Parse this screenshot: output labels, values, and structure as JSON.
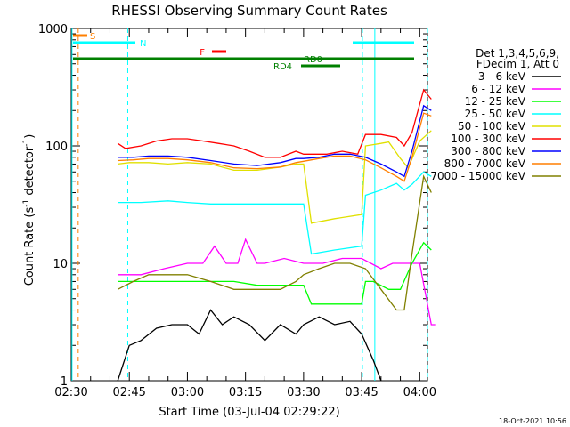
{
  "chart_data": {
    "type": "line",
    "title": "RHESSI Observing Summary Count Rates",
    "xlabel": "Start Time (03-Jul-04 02:29:22)",
    "ylabel_main": "Count Rate (s",
    "ylabel_sup1": "-1",
    "ylabel_mid": " detector",
    "ylabel_sup2": "-1",
    "ylabel_end": ")",
    "y_scale": "log",
    "ylim": [
      1,
      1000
    ],
    "xlim_min": [
      150,
      242
    ],
    "y_ticks": [
      {
        "v": 1,
        "label": "1"
      },
      {
        "v": 10,
        "label": "10"
      },
      {
        "v": 100,
        "label": "100"
      },
      {
        "v": 1000,
        "label": "1000"
      }
    ],
    "x_ticks": [
      {
        "v": 150,
        "label": "02:30"
      },
      {
        "v": 165,
        "label": "02:45"
      },
      {
        "v": 180,
        "label": "03:00"
      },
      {
        "v": 195,
        "label": "03:15"
      },
      {
        "v": 210,
        "label": "03:30"
      },
      {
        "v": 225,
        "label": "03:45"
      },
      {
        "v": 240,
        "label": "04:00"
      }
    ],
    "legend_header": [
      "Det 1,3,4,5,6,9,",
      "FDecim 1, Att 0"
    ],
    "legend_placement": "right",
    "timestamp": "18-Oct-2021 10:56",
    "series": [
      {
        "name": "3 - 6 keV",
        "color": "#000000",
        "points": [
          [
            162,
            1
          ],
          [
            165,
            2
          ],
          [
            168,
            2.2
          ],
          [
            172,
            2.8
          ],
          [
            176,
            3
          ],
          [
            180,
            3
          ],
          [
            183,
            2.5
          ],
          [
            186,
            4
          ],
          [
            189,
            3
          ],
          [
            192,
            3.5
          ],
          [
            196,
            3
          ],
          [
            200,
            2.2
          ],
          [
            204,
            3
          ],
          [
            208,
            2.5
          ],
          [
            210,
            3
          ],
          [
            214,
            3.5
          ],
          [
            218,
            3
          ],
          [
            222,
            3.2
          ],
          [
            225,
            2.5
          ],
          [
            228,
            1.5
          ],
          [
            230,
            1
          ]
        ]
      },
      {
        "name": "6 - 12 keV",
        "color": "#ff00ff",
        "points": [
          [
            162,
            8
          ],
          [
            168,
            8
          ],
          [
            174,
            9
          ],
          [
            180,
            10
          ],
          [
            184,
            10
          ],
          [
            187,
            14
          ],
          [
            190,
            10
          ],
          [
            193,
            10
          ],
          [
            195,
            16
          ],
          [
            198,
            10
          ],
          [
            200,
            10
          ],
          [
            205,
            11
          ],
          [
            210,
            10
          ],
          [
            215,
            10
          ],
          [
            220,
            11
          ],
          [
            225,
            11
          ],
          [
            230,
            9
          ],
          [
            233,
            10
          ],
          [
            234,
            10
          ],
          [
            237,
            10
          ],
          [
            240,
            10
          ],
          [
            243,
            3
          ],
          [
            244,
            3
          ]
        ]
      },
      {
        "name": "12 - 25 keV",
        "color": "#00ff00",
        "points": [
          [
            162,
            7
          ],
          [
            168,
            7
          ],
          [
            175,
            7
          ],
          [
            180,
            7
          ],
          [
            186,
            7
          ],
          [
            192,
            7
          ],
          [
            198,
            6.5
          ],
          [
            204,
            6.5
          ],
          [
            210,
            6.5
          ],
          [
            212,
            4.5
          ],
          [
            218,
            4.5
          ],
          [
            225,
            4.5
          ],
          [
            226,
            7
          ],
          [
            228,
            7
          ],
          [
            232,
            6
          ],
          [
            235,
            6
          ],
          [
            238,
            10
          ],
          [
            241,
            15
          ],
          [
            243,
            13
          ]
        ]
      },
      {
        "name": "25 - 50 keV",
        "color": "#00ffff",
        "points": [
          [
            162,
            33
          ],
          [
            168,
            33
          ],
          [
            175,
            34
          ],
          [
            180,
            33
          ],
          [
            186,
            32
          ],
          [
            192,
            32
          ],
          [
            198,
            32
          ],
          [
            204,
            32
          ],
          [
            210,
            32
          ],
          [
            212,
            12
          ],
          [
            218,
            13
          ],
          [
            225,
            14
          ],
          [
            226,
            38
          ],
          [
            230,
            42
          ],
          [
            234,
            48
          ],
          [
            236,
            42
          ],
          [
            238,
            47
          ],
          [
            241,
            60
          ],
          [
            243,
            55
          ]
        ]
      },
      {
        "name": "50 - 100 keV",
        "color": "#e0e000",
        "points": [
          [
            162,
            70
          ],
          [
            165,
            72
          ],
          [
            170,
            72
          ],
          [
            175,
            70
          ],
          [
            180,
            72
          ],
          [
            186,
            70
          ],
          [
            192,
            62
          ],
          [
            198,
            62
          ],
          [
            204,
            66
          ],
          [
            208,
            70
          ],
          [
            210,
            70
          ],
          [
            212,
            22
          ],
          [
            218,
            24
          ],
          [
            225,
            26
          ],
          [
            226,
            100
          ],
          [
            230,
            105
          ],
          [
            232,
            108
          ],
          [
            235,
            78
          ],
          [
            237,
            65
          ],
          [
            240,
            110
          ],
          [
            243,
            135
          ]
        ]
      },
      {
        "name": "100 - 300 keV",
        "color": "#ff0000",
        "points": [
          [
            162,
            105
          ],
          [
            164,
            95
          ],
          [
            168,
            100
          ],
          [
            172,
            110
          ],
          [
            176,
            115
          ],
          [
            180,
            115
          ],
          [
            184,
            110
          ],
          [
            188,
            105
          ],
          [
            192,
            100
          ],
          [
            196,
            90
          ],
          [
            200,
            80
          ],
          [
            204,
            80
          ],
          [
            208,
            90
          ],
          [
            210,
            85
          ],
          [
            212,
            85
          ],
          [
            216,
            85
          ],
          [
            220,
            90
          ],
          [
            224,
            85
          ],
          [
            226,
            125
          ],
          [
            230,
            125
          ],
          [
            234,
            118
          ],
          [
            236,
            100
          ],
          [
            238,
            130
          ],
          [
            241,
            300
          ],
          [
            243,
            250
          ]
        ]
      },
      {
        "name": "300 - 800 keV",
        "color": "#0000ff",
        "points": [
          [
            162,
            80
          ],
          [
            166,
            80
          ],
          [
            170,
            82
          ],
          [
            175,
            82
          ],
          [
            180,
            80
          ],
          [
            186,
            75
          ],
          [
            192,
            70
          ],
          [
            198,
            68
          ],
          [
            204,
            72
          ],
          [
            208,
            78
          ],
          [
            210,
            78
          ],
          [
            214,
            80
          ],
          [
            218,
            85
          ],
          [
            222,
            85
          ],
          [
            226,
            80
          ],
          [
            230,
            70
          ],
          [
            234,
            60
          ],
          [
            236,
            55
          ],
          [
            238,
            90
          ],
          [
            241,
            220
          ],
          [
            243,
            200
          ]
        ]
      },
      {
        "name": "800 - 7000 keV",
        "color": "#ff7f00",
        "points": [
          [
            162,
            75
          ],
          [
            166,
            76
          ],
          [
            170,
            78
          ],
          [
            175,
            78
          ],
          [
            180,
            76
          ],
          [
            186,
            72
          ],
          [
            192,
            65
          ],
          [
            198,
            64
          ],
          [
            204,
            66
          ],
          [
            208,
            72
          ],
          [
            210,
            74
          ],
          [
            214,
            78
          ],
          [
            218,
            82
          ],
          [
            222,
            82
          ],
          [
            226,
            76
          ],
          [
            230,
            65
          ],
          [
            234,
            55
          ],
          [
            236,
            50
          ],
          [
            238,
            80
          ],
          [
            241,
            190
          ],
          [
            243,
            180
          ]
        ]
      },
      {
        "name": "7000 - 15000 keV",
        "color": "#808000",
        "points": [
          [
            162,
            6
          ],
          [
            166,
            7
          ],
          [
            170,
            8
          ],
          [
            175,
            8
          ],
          [
            180,
            8
          ],
          [
            186,
            7
          ],
          [
            192,
            6
          ],
          [
            198,
            6
          ],
          [
            204,
            6
          ],
          [
            208,
            7
          ],
          [
            210,
            8
          ],
          [
            214,
            9
          ],
          [
            218,
            10
          ],
          [
            222,
            10
          ],
          [
            226,
            9
          ],
          [
            230,
            6
          ],
          [
            234,
            4
          ],
          [
            236,
            4
          ],
          [
            238,
            12
          ],
          [
            241,
            55
          ],
          [
            243,
            40
          ]
        ]
      }
    ],
    "annotations": [
      {
        "label": "S",
        "color": "#ff7f00"
      },
      {
        "label": "N",
        "color": "#00ffff"
      },
      {
        "label": "F",
        "color": "#ff0000"
      },
      {
        "label": "RD0",
        "color": "#008000"
      },
      {
        "label": "RD4",
        "color": "#008000"
      }
    ]
  }
}
